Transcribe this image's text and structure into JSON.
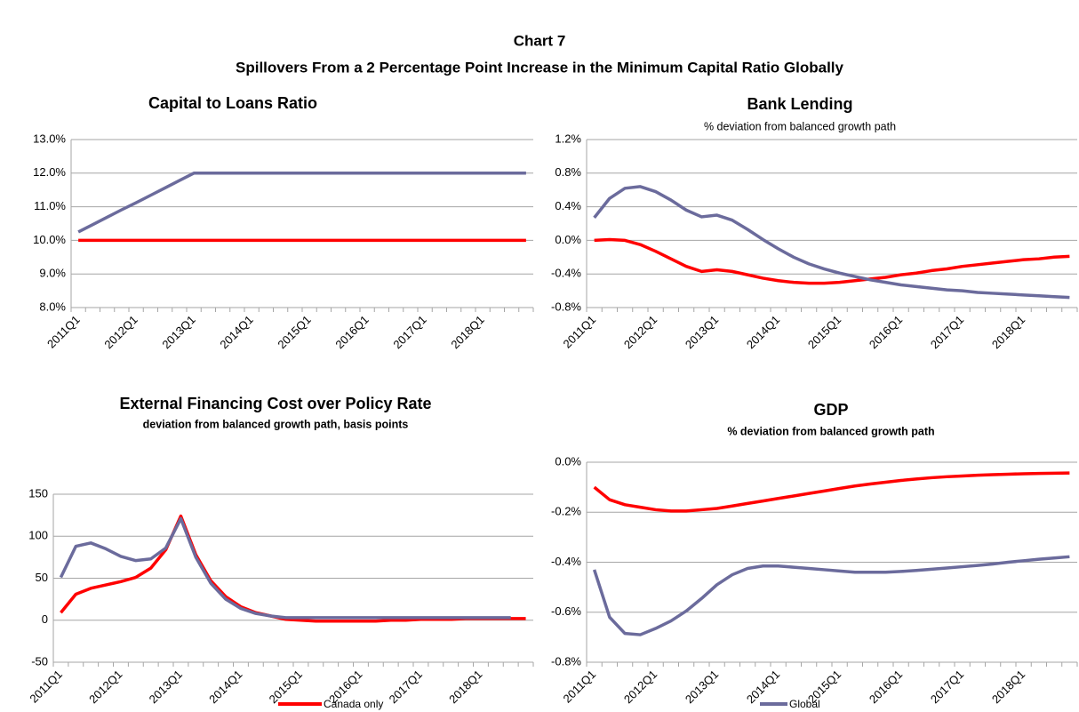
{
  "title": "Chart 7",
  "subtitle": "Spillovers From a 2 Percentage Point Increase in the Minimum Capital Ratio Globally",
  "chart_data": [
    {
      "type": "line",
      "title": "Capital to Loans Ratio",
      "categories": [
        "2011Q1",
        null,
        null,
        null,
        "2012Q1",
        null,
        null,
        null,
        "2013Q1",
        null,
        null,
        null,
        "2014Q1",
        null,
        null,
        null,
        "2015Q1",
        null,
        null,
        null,
        "2016Q1",
        null,
        null,
        null,
        "2017Q1",
        null,
        null,
        null,
        "2018Q1",
        null,
        null,
        null
      ],
      "series": [
        {
          "name": "Canada only",
          "color": "#ff0000",
          "values": [
            10,
            10,
            10,
            10,
            10,
            10,
            10,
            10,
            10,
            10,
            10,
            10,
            10,
            10,
            10,
            10,
            10,
            10,
            10,
            10,
            10,
            10,
            10,
            10,
            10,
            10,
            10,
            10,
            10,
            10,
            10,
            10
          ]
        },
        {
          "name": "Global",
          "color": "#6b6b9c",
          "values": [
            10.25,
            10.47,
            10.69,
            10.91,
            11.12,
            11.34,
            11.56,
            11.78,
            12,
            12,
            12,
            12,
            12,
            12,
            12,
            12,
            12,
            12,
            12,
            12,
            12,
            12,
            12,
            12,
            12,
            12,
            12,
            12,
            12,
            12,
            12,
            12
          ]
        }
      ],
      "ylim": [
        8,
        13
      ],
      "yticks": [
        {
          "value": 8,
          "label": "8.0%"
        },
        {
          "value": 9,
          "label": "9.0%"
        },
        {
          "value": 10,
          "label": "10.0%"
        },
        {
          "value": 11,
          "label": "11.0%"
        },
        {
          "value": 12,
          "label": "12.0%"
        },
        {
          "value": 13,
          "label": "13.0%"
        }
      ],
      "grid": true
    },
    {
      "type": "line",
      "title": "Bank Lending",
      "subtitle": "% deviation from balanced growth path",
      "categories": [
        "2011Q1",
        null,
        null,
        null,
        "2012Q1",
        null,
        null,
        null,
        "2013Q1",
        null,
        null,
        null,
        "2014Q1",
        null,
        null,
        null,
        "2015Q1",
        null,
        null,
        null,
        "2016Q1",
        null,
        null,
        null,
        "2017Q1",
        null,
        null,
        null,
        "2018Q1",
        null,
        null,
        null
      ],
      "series": [
        {
          "name": "Canada only",
          "color": "#ff0000",
          "values": [
            0.0,
            0.01,
            0.0,
            -0.05,
            -0.13,
            -0.22,
            -0.31,
            -0.37,
            -0.35,
            -0.37,
            -0.41,
            -0.45,
            -0.48,
            -0.5,
            -0.51,
            -0.51,
            -0.5,
            -0.48,
            -0.46,
            -0.44,
            -0.41,
            -0.39,
            -0.36,
            -0.34,
            -0.31,
            -0.29,
            -0.27,
            -0.25,
            -0.23,
            -0.22,
            -0.2,
            -0.19
          ]
        },
        {
          "name": "Global",
          "color": "#6b6b9c",
          "values": [
            0.27,
            0.5,
            0.62,
            0.64,
            0.58,
            0.48,
            0.36,
            0.28,
            0.3,
            0.24,
            0.13,
            0.01,
            -0.1,
            -0.2,
            -0.28,
            -0.34,
            -0.39,
            -0.43,
            -0.47,
            -0.5,
            -0.53,
            -0.55,
            -0.57,
            -0.59,
            -0.6,
            -0.62,
            -0.63,
            -0.64,
            -0.65,
            -0.66,
            -0.67,
            -0.68
          ]
        }
      ],
      "ylim": [
        -0.8,
        1.2
      ],
      "yticks": [
        {
          "value": -0.8,
          "label": "-0.8%"
        },
        {
          "value": -0.4,
          "label": "-0.4%"
        },
        {
          "value": 0,
          "label": "0.0%"
        },
        {
          "value": 0.4,
          "label": "0.4%"
        },
        {
          "value": 0.8,
          "label": "0.8%"
        },
        {
          "value": 1.2,
          "label": "1.2%"
        }
      ],
      "grid": true
    },
    {
      "type": "line",
      "title": "External Financing Cost over Policy Rate",
      "subtitle": "deviation from balanced growth path, basis points",
      "categories": [
        "2011Q1",
        null,
        null,
        null,
        "2012Q1",
        null,
        null,
        null,
        "2013Q1",
        null,
        null,
        null,
        "2014Q1",
        null,
        null,
        null,
        "2015Q1",
        null,
        null,
        null,
        "2016Q1",
        null,
        null,
        null,
        "2017Q1",
        null,
        null,
        null,
        "2018Q1",
        null,
        null,
        null
      ],
      "series": [
        {
          "name": "Canada only",
          "color": "#ff0000",
          "values": [
            9,
            31,
            38,
            42,
            46,
            51,
            62,
            84,
            124,
            78,
            47,
            28,
            16,
            9,
            5,
            1,
            0,
            -1,
            -1,
            -1,
            -1,
            -1,
            0,
            0,
            1,
            1,
            1,
            2,
            2,
            2,
            2,
            2
          ]
        },
        {
          "name": "Global",
          "color": "#6b6b9c",
          "values": [
            51,
            88,
            92,
            85,
            76,
            71,
            73,
            86,
            121,
            75,
            44,
            25,
            14,
            8,
            5,
            3,
            3,
            3,
            3,
            3,
            3,
            3,
            3,
            3,
            3,
            3,
            3,
            3,
            3,
            3,
            3,
            null
          ]
        }
      ],
      "ylim": [
        -50,
        150
      ],
      "yticks": [
        -50,
        0,
        50,
        100,
        150
      ],
      "grid": true
    },
    {
      "type": "line",
      "title": "GDP",
      "subtitle": "% deviation from balanced growth path",
      "categories": [
        "2011Q1",
        null,
        null,
        null,
        "2012Q1",
        null,
        null,
        null,
        "2013Q1",
        null,
        null,
        null,
        "2014Q1",
        null,
        null,
        null,
        "2015Q1",
        null,
        null,
        null,
        "2016Q1",
        null,
        null,
        null,
        "2017Q1",
        null,
        null,
        null,
        "2018Q1",
        null,
        null,
        null
      ],
      "series": [
        {
          "name": "Canada only",
          "color": "#ff0000",
          "values": [
            -0.1,
            -0.15,
            -0.17,
            -0.18,
            -0.19,
            -0.195,
            -0.195,
            -0.19,
            -0.185,
            -0.175,
            -0.165,
            -0.155,
            -0.145,
            -0.135,
            -0.125,
            -0.115,
            -0.105,
            -0.095,
            -0.087,
            -0.08,
            -0.073,
            -0.067,
            -0.062,
            -0.058,
            -0.055,
            -0.052,
            -0.05,
            -0.048,
            -0.046,
            -0.045,
            -0.044,
            -0.043
          ]
        },
        {
          "name": "Global",
          "color": "#6b6b9c",
          "values": [
            -0.43,
            -0.62,
            -0.685,
            -0.69,
            -0.665,
            -0.635,
            -0.595,
            -0.545,
            -0.49,
            -0.45,
            -0.425,
            -0.415,
            -0.415,
            -0.42,
            -0.425,
            -0.43,
            -0.435,
            -0.44,
            -0.44,
            -0.44,
            -0.437,
            -0.433,
            -0.428,
            -0.423,
            -0.418,
            -0.413,
            -0.407,
            -0.4,
            -0.394,
            -0.388,
            -0.383,
            -0.378
          ]
        }
      ],
      "ylim": [
        -0.8,
        0
      ],
      "yticks": [
        {
          "value": -0.8,
          "label": "-0.8%"
        },
        {
          "value": -0.6,
          "label": "-0.6%"
        },
        {
          "value": -0.4,
          "label": "-0.4%"
        },
        {
          "value": -0.2,
          "label": "-0.2%"
        },
        {
          "value": 0,
          "label": "0.0%"
        }
      ],
      "grid": true
    }
  ]
}
